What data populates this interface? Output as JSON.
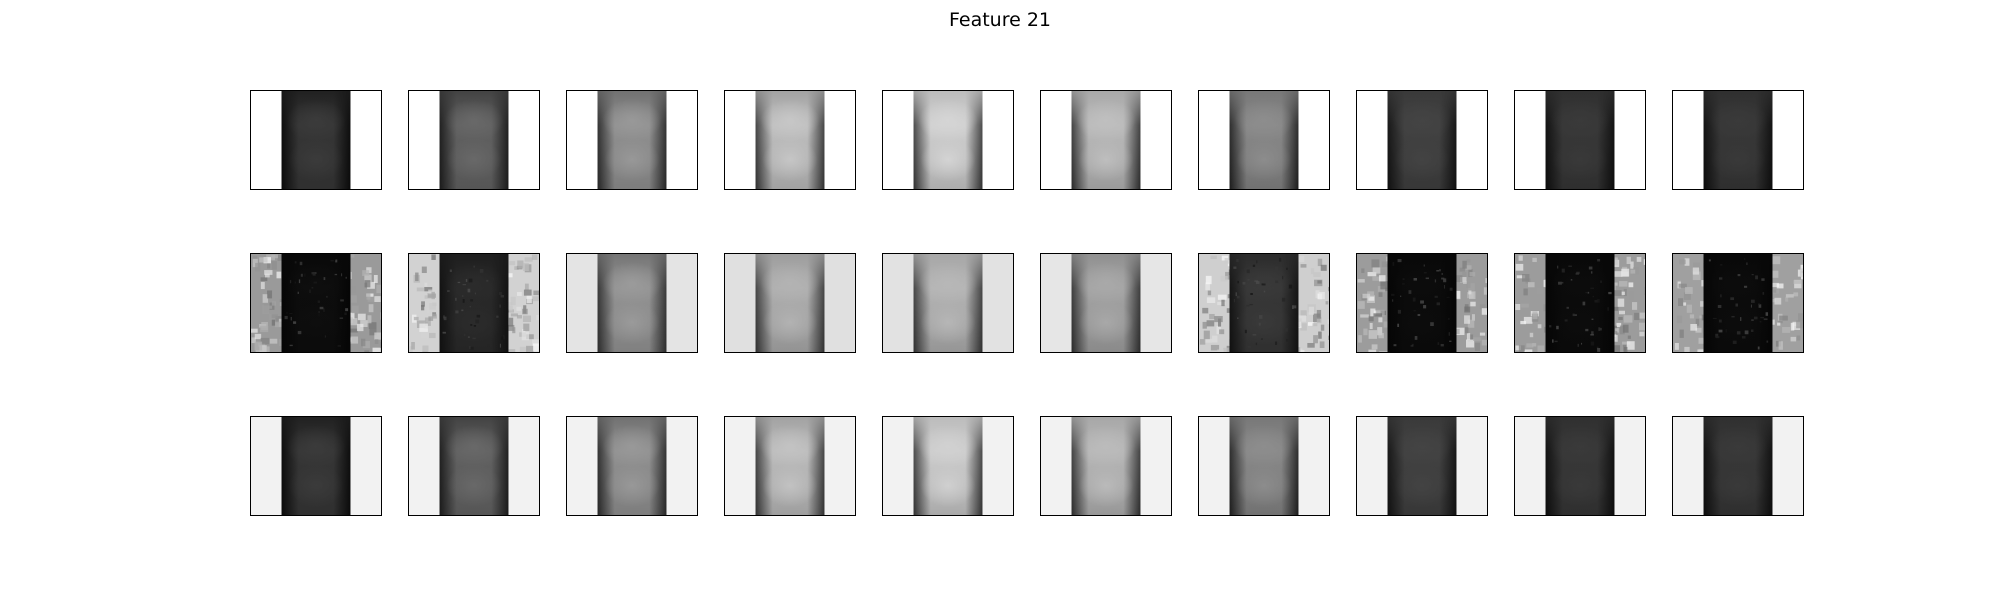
{
  "figure": {
    "title": "Feature 21",
    "rows": [
      {
        "row_name": "row-1",
        "panels": [
          {
            "background": "#ffffff",
            "dark": "#0a0a0a",
            "mid": "#3c3c3c",
            "light": "#1c1c1c",
            "texture": false
          },
          {
            "background": "#ffffff",
            "dark": "#1a1a1a",
            "mid": "#6a6a6a",
            "light": "#3c3c3c",
            "texture": false
          },
          {
            "background": "#ffffff",
            "dark": "#262626",
            "mid": "#9a9a9a",
            "light": "#6a6a6a",
            "texture": false
          },
          {
            "background": "#ffffff",
            "dark": "#303030",
            "mid": "#c8c8c8",
            "light": "#9c9c9c",
            "texture": false
          },
          {
            "background": "#ffffff",
            "dark": "#303030",
            "mid": "#d6d6d6",
            "light": "#b8b8b8",
            "texture": false
          },
          {
            "background": "#ffffff",
            "dark": "#2a2a2a",
            "mid": "#c0c0c0",
            "light": "#a4a4a4",
            "texture": false
          },
          {
            "background": "#ffffff",
            "dark": "#1c1c1c",
            "mid": "#8e8e8e",
            "light": "#747474",
            "texture": false
          },
          {
            "background": "#ffffff",
            "dark": "#101010",
            "mid": "#444444",
            "light": "#383838",
            "texture": false
          },
          {
            "background": "#ffffff",
            "dark": "#0c0c0c",
            "mid": "#3a3a3a",
            "light": "#2e2e2e",
            "texture": false
          },
          {
            "background": "#ffffff",
            "dark": "#0c0c0c",
            "mid": "#3a3a3a",
            "light": "#2e2e2e",
            "texture": false
          }
        ]
      },
      {
        "row_name": "row-2",
        "panels": [
          {
            "background": "#9a9a9a",
            "dark": "#050505",
            "mid": "#0e0e0e",
            "light": "#080808",
            "texture": true
          },
          {
            "background": "#d2d2d2",
            "dark": "#101010",
            "mid": "#2c2c2c",
            "light": "#1c1c1c",
            "texture": true
          },
          {
            "background": "#e4e4e4",
            "dark": "#2c2c2c",
            "mid": "#9c9c9c",
            "light": "#6e6e6e",
            "texture": false
          },
          {
            "background": "#e0e0e0",
            "dark": "#303030",
            "mid": "#b4b4b4",
            "light": "#9a9a9a",
            "texture": false
          },
          {
            "background": "#e2e2e2",
            "dark": "#2e2e2e",
            "mid": "#b8b8b8",
            "light": "#a4a4a4",
            "texture": false
          },
          {
            "background": "#e6e6e6",
            "dark": "#2a2a2a",
            "mid": "#aaaaaa",
            "light": "#8c8c8c",
            "texture": false
          },
          {
            "background": "#cfcfcf",
            "dark": "#101010",
            "mid": "#3a3a3a",
            "light": "#2a2a2a",
            "texture": true
          },
          {
            "background": "#9c9c9c",
            "dark": "#050505",
            "mid": "#0c0c0c",
            "light": "#080808",
            "texture": true
          },
          {
            "background": "#9c9c9c",
            "dark": "#050505",
            "mid": "#0c0c0c",
            "light": "#080808",
            "texture": true
          },
          {
            "background": "#a0a0a0",
            "dark": "#050505",
            "mid": "#0c0c0c",
            "light": "#080808",
            "texture": true
          }
        ]
      },
      {
        "row_name": "row-3",
        "panels": [
          {
            "background": "#f2f2f2",
            "dark": "#0a0a0a",
            "mid": "#3c3c3c",
            "light": "#1c1c1c",
            "texture": false
          },
          {
            "background": "#f2f2f2",
            "dark": "#1a1a1a",
            "mid": "#6a6a6a",
            "light": "#3c3c3c",
            "texture": false
          },
          {
            "background": "#f2f2f2",
            "dark": "#262626",
            "mid": "#9a9a9a",
            "light": "#6a6a6a",
            "texture": false
          },
          {
            "background": "#f2f2f2",
            "dark": "#303030",
            "mid": "#c4c4c4",
            "light": "#9c9c9c",
            "texture": false
          },
          {
            "background": "#f2f2f2",
            "dark": "#303030",
            "mid": "#d2d2d2",
            "light": "#b8b8b8",
            "texture": false
          },
          {
            "background": "#f2f2f2",
            "dark": "#2a2a2a",
            "mid": "#bcbcbc",
            "light": "#a4a4a4",
            "texture": false
          },
          {
            "background": "#f2f2f2",
            "dark": "#1c1c1c",
            "mid": "#8e8e8e",
            "light": "#747474",
            "texture": false
          },
          {
            "background": "#f2f2f2",
            "dark": "#101010",
            "mid": "#444444",
            "light": "#383838",
            "texture": false
          },
          {
            "background": "#f2f2f2",
            "dark": "#0c0c0c",
            "mid": "#3a3a3a",
            "light": "#2e2e2e",
            "texture": false
          },
          {
            "background": "#f2f2f2",
            "dark": "#0c0c0c",
            "mid": "#3a3a3a",
            "light": "#2e2e2e",
            "texture": false
          }
        ]
      }
    ]
  }
}
